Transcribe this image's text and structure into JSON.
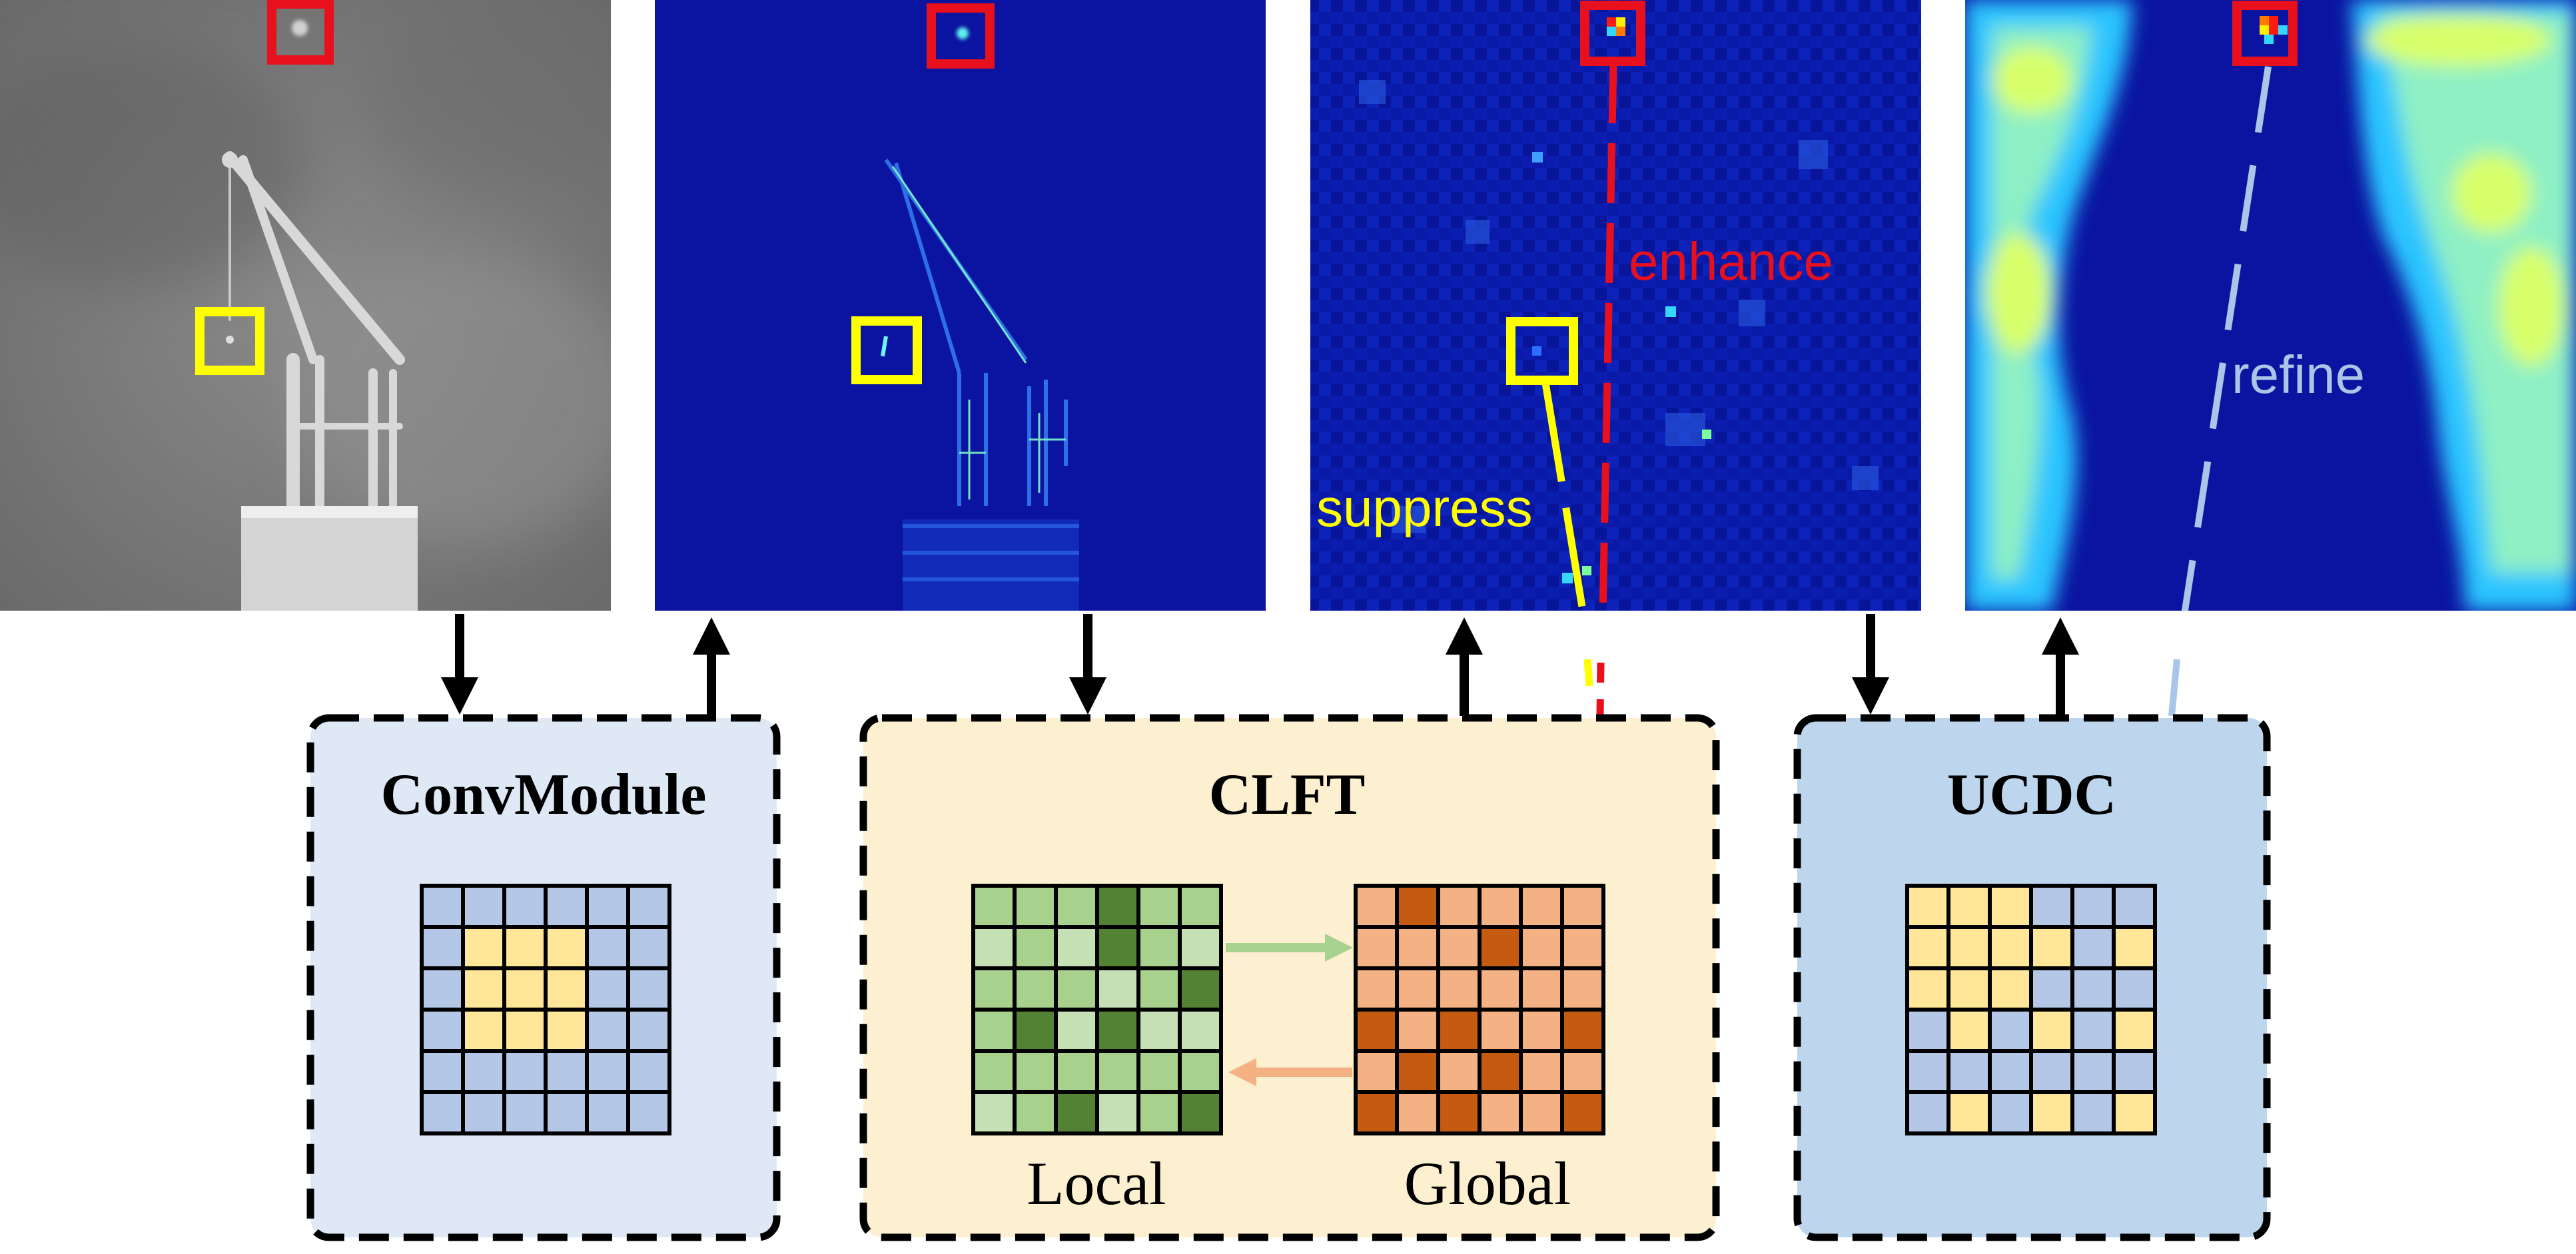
{
  "panels": [
    {
      "id": "input",
      "style": "infrared-grayscale"
    },
    {
      "id": "conv-feature",
      "style": "edge-heatmap"
    },
    {
      "id": "clft-feature",
      "style": "noisy-heatmap",
      "annotations": {
        "enhance": "enhance",
        "suppress": "suppress"
      }
    },
    {
      "id": "ucdc-feature",
      "style": "smooth-heatmap",
      "annotations": {
        "refine": "refine"
      }
    }
  ],
  "modules": {
    "conv": {
      "title": "ConvModule",
      "fill": "#dee9f5",
      "grid": {
        "rows": 6,
        "cols": 6,
        "cells": [
          "BBBBBB",
          "BYYYBB",
          "BYYYBB",
          "BYYYBB",
          "BBBBBB",
          "BBBBBB"
        ]
      }
    },
    "clft": {
      "title": "CLFT",
      "fill": "#fdf0d0",
      "local_label": "Local",
      "global_label": "Global",
      "local_grid": {
        "rows": 6,
        "cols": 6,
        "cells": [
          "mmmDmm",
          "lmlDml",
          "mmmlmD",
          "mDlDll",
          "mmmmmm",
          "lmDlmD"
        ]
      },
      "global_grid": {
        "rows": 6,
        "cols": 6,
        "cells": [
          "lDllll",
          "lllDll",
          "llllll",
          "DlDllD",
          "lDlDll",
          "DlDllD"
        ]
      }
    },
    "ucdc": {
      "title": "UCDC",
      "fill": "#bdd6ee",
      "grid": {
        "rows": 6,
        "cols": 6,
        "cells": [
          "YYYBBB",
          "YYYYBY",
          "YYYBBB",
          "BYBYBY",
          "BBBBBB",
          "BYBYBY"
        ]
      }
    }
  },
  "colors": {
    "red_box": "#e8101c",
    "yellow_box": "#ffff00",
    "enhance": "#e8101c",
    "suppress": "#ffff00",
    "refine": "#a9c5e8",
    "arrow": "#000000",
    "grid_blue": "#b4c7e7",
    "grid_yellow": "#ffe699",
    "local_light": "#c5e0b4",
    "local_mid": "#a9d18e",
    "local_dark": "#548235",
    "global_light": "#f8cbad",
    "global_mid": "#f4b183",
    "global_dark": "#c55a11",
    "green_arrow": "#a9d18e",
    "orange_arrow": "#f4b183"
  }
}
